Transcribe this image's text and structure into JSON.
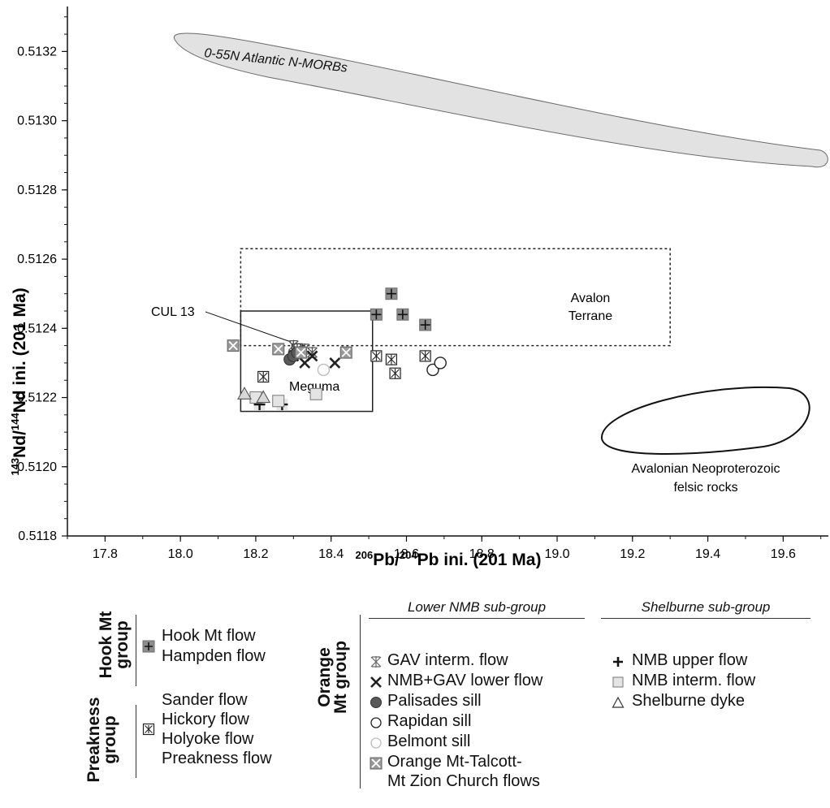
{
  "chart_data": {
    "type": "scatter",
    "xlabel": "206Pb/204Pb ini. (201 Ma)",
    "ylabel": "143Nd/144Nd ini. (201 Ma)",
    "xlim": [
      17.7,
      19.72
    ],
    "ylim": [
      0.5118,
      0.51333
    ],
    "xticks": [
      "17.8",
      "18.0",
      "18.2",
      "18.4",
      "18.6",
      "18.8",
      "19.0",
      "19.2",
      "19.4",
      "19.6"
    ],
    "yticks": [
      "0.5118",
      "0.5120",
      "0.5122",
      "0.5124",
      "0.5126",
      "0.5128",
      "0.5130",
      "0.5132"
    ],
    "regions": {
      "morb": {
        "label": "0-55N Atlantic N-MORBs"
      },
      "avalon_terrane": {
        "label_line1": "Avalon",
        "label_line2": "Terrane",
        "x": [
          18.16,
          19.3
        ],
        "y": [
          0.51235,
          0.51263
        ]
      },
      "meguma": {
        "label": "Meguma",
        "x": [
          18.16,
          18.51
        ],
        "y": [
          0.51216,
          0.51245
        ]
      },
      "neoproterozoic": {
        "label_line1": "Avalonian Neoproterozoic",
        "label_line2": "felsic rocks"
      },
      "cul13": {
        "label": "CUL 13"
      }
    },
    "series": [
      {
        "name": "Hook Mt flow / Hampden flow",
        "symbol": "gray-square-plus",
        "x": [
          18.52,
          18.56,
          18.59,
          18.65
        ],
        "y": [
          0.51244,
          0.5125,
          0.51244,
          0.51241
        ]
      },
      {
        "name": "Sander / Hickory / Holyoke / Preakness flow",
        "symbol": "boxed-star",
        "x": [
          18.22,
          18.31,
          18.52,
          18.56,
          18.57,
          18.65
        ],
        "y": [
          0.51226,
          0.51234,
          0.51232,
          0.51231,
          0.51227,
          0.51232
        ]
      },
      {
        "name": "GAV interm. flow",
        "symbol": "asterisk",
        "x": [
          18.3,
          18.33,
          18.35
        ],
        "y": [
          0.51235,
          0.51234,
          0.51233
        ]
      },
      {
        "name": "NMB+GAV lower flow",
        "symbol": "x",
        "x": [
          18.3,
          18.33,
          18.35,
          18.41
        ],
        "y": [
          0.51232,
          0.5123,
          0.51232,
          0.5123
        ]
      },
      {
        "name": "Palisades sill",
        "symbol": "dark-circle",
        "x": [
          18.29,
          18.3,
          18.31
        ],
        "y": [
          0.51231,
          0.51232,
          0.51233
        ]
      },
      {
        "name": "Rapidan sill",
        "symbol": "open-circle",
        "x": [
          18.67,
          18.69
        ],
        "y": [
          0.51228,
          0.5123
        ]
      },
      {
        "name": "Belmont sill",
        "symbol": "light-circle",
        "x": [
          18.38
        ],
        "y": [
          0.51228
        ]
      },
      {
        "name": "Orange Mt-Talcott-Mt Zion Church flows",
        "symbol": "gray-square-x",
        "x": [
          18.14,
          18.26,
          18.32,
          18.44
        ],
        "y": [
          0.51235,
          0.51234,
          0.51233,
          0.51233
        ]
      },
      {
        "name": "NMB upper flow",
        "symbol": "plus",
        "x": [
          18.21,
          18.27
        ],
        "y": [
          0.51218,
          0.51218
        ]
      },
      {
        "name": "NMB interm. flow",
        "symbol": "light-square",
        "x": [
          18.2,
          18.26,
          18.36
        ],
        "y": [
          0.5122,
          0.51219,
          0.51221
        ]
      },
      {
        "name": "Shelburne dyke",
        "symbol": "triangle",
        "x": [
          18.17,
          18.22
        ],
        "y": [
          0.51221,
          0.5122
        ]
      }
    ]
  },
  "legend": {
    "hook": {
      "group_label_line1": "Hook Mt",
      "group_label_line2": "group",
      "items": [
        "Hook Mt flow",
        "Hampden flow"
      ]
    },
    "preakness": {
      "group_label_line1": "Preakness",
      "group_label_line2": "group",
      "items": [
        "Sander flow",
        "Hickory flow",
        "Holyoke flow",
        "Preakness flow"
      ]
    },
    "orange": {
      "group_label_line1": "Orange",
      "group_label_line2": "Mt group"
    },
    "lower_nmb": {
      "header": "Lower NMB sub-group",
      "items": [
        "GAV interm. flow",
        "NMB+GAV lower flow",
        "Palisades sill",
        "Rapidan sill",
        "Belmont sill",
        "Orange Mt-Talcott-",
        "Mt Zion Church flows"
      ]
    },
    "shelburne": {
      "header": "Shelburne sub-group",
      "items": [
        "NMB upper flow",
        "NMB interm. flow",
        "Shelburne dyke"
      ]
    }
  }
}
